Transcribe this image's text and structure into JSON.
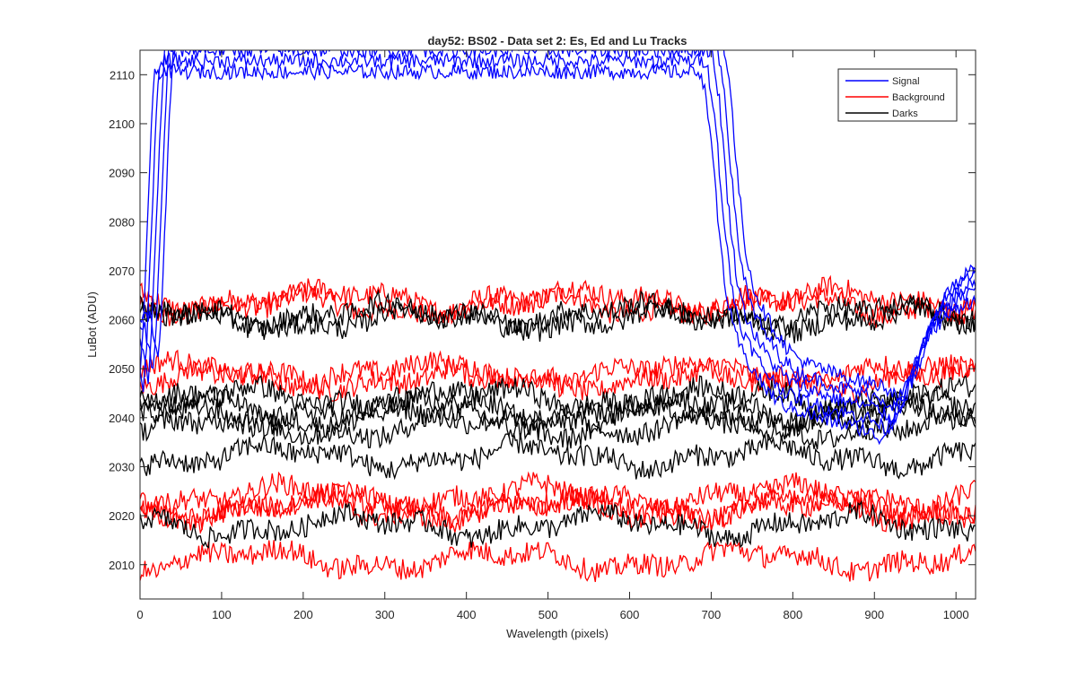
{
  "chart_data": {
    "type": "line",
    "title": "day52: BS02 - Data set 2: Es, Ed and Lu Tracks",
    "xlabel": "Wavelength (pixels)",
    "ylabel": "LuBot (ADU)",
    "xlim": [
      0,
      1024
    ],
    "ylim": [
      2003,
      2115
    ],
    "xticks": [
      0,
      100,
      200,
      300,
      400,
      500,
      600,
      700,
      800,
      900,
      1000
    ],
    "yticks": [
      2010,
      2020,
      2030,
      2040,
      2050,
      2060,
      2070,
      2080,
      2090,
      2100,
      2110
    ],
    "grid": false,
    "legend_position": "top-right",
    "colors": {
      "Signal": "#0000ff",
      "Background": "#ff0000",
      "Darks": "#000000"
    },
    "legend": [
      "Signal",
      "Background",
      "Darks"
    ],
    "series_groups": [
      {
        "name": "Signal",
        "count": 5,
        "x": [
          0,
          10,
          15,
          20,
          25,
          30,
          35,
          40,
          50,
          60,
          700,
          710,
          720,
          730,
          740,
          750,
          760,
          780,
          800,
          850,
          900,
          920,
          940,
          960,
          980,
          1000,
          1024
        ],
        "y_levels": [
          2056,
          2048,
          2060,
          2080,
          2100,
          2115,
          2115,
          2115,
          2115,
          2115,
          2115,
          2105,
          2085,
          2070,
          2062,
          2058,
          2055,
          2050,
          2047,
          2044,
          2042,
          2040,
          2045,
          2055,
          2062,
          2065,
          2068
        ]
      },
      {
        "name": "Background",
        "levels": [
          2063,
          2064,
          2048,
          2049,
          2024,
          2022,
          2021,
          2011
        ],
        "noise_amplitude": 1.6
      },
      {
        "name": "Darks",
        "levels": [
          2061,
          2060,
          2044,
          2042,
          2040,
          2038,
          2032,
          2018
        ],
        "noise_amplitude": 1.6
      }
    ]
  }
}
